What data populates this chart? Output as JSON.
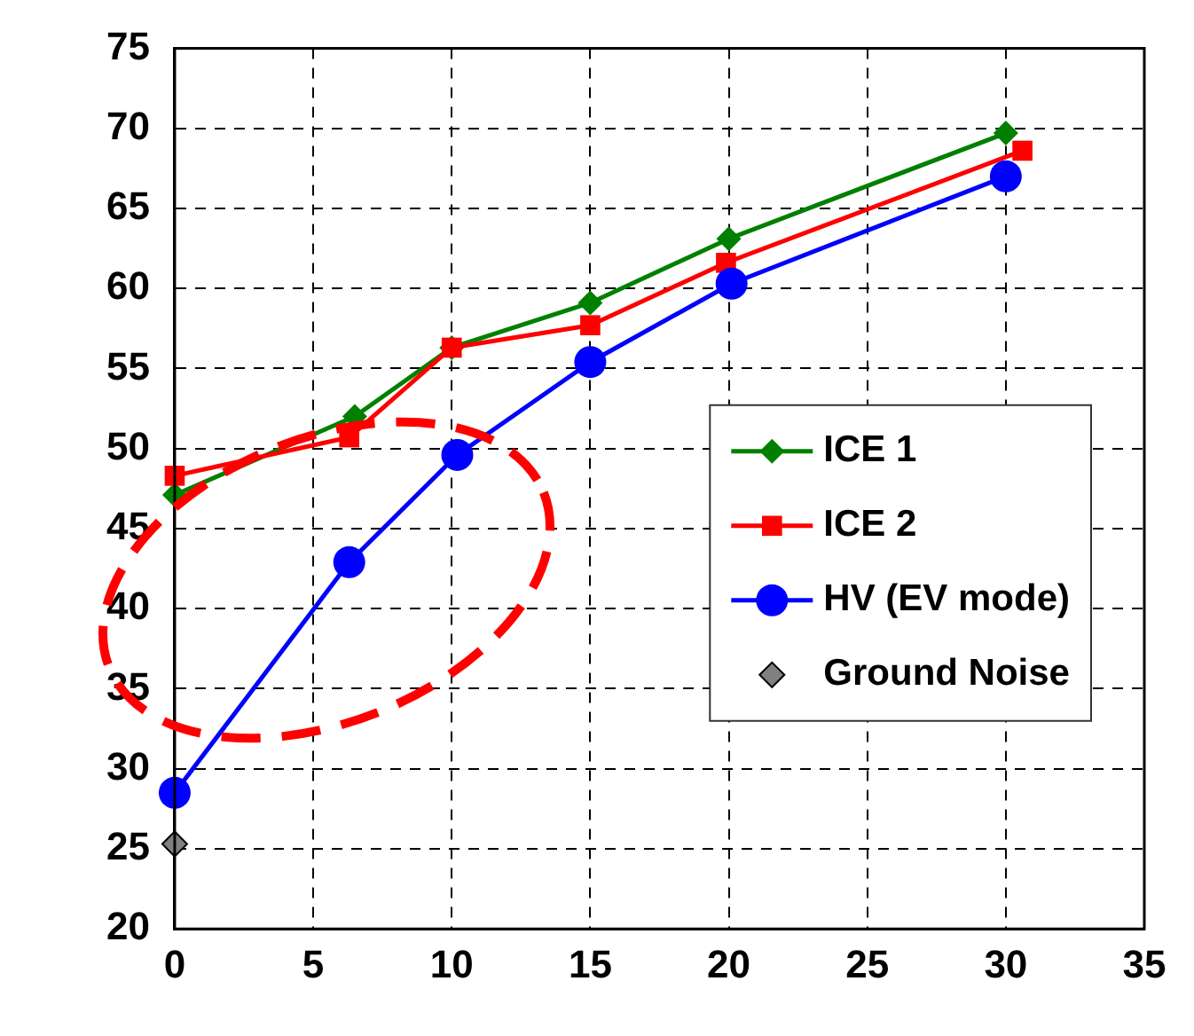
{
  "chart_data": {
    "type": "line",
    "x": [
      0,
      6.5,
      10,
      15,
      20,
      30
    ],
    "series": [
      {
        "name": "ICE 1",
        "color": "#008000",
        "marker": "diamond",
        "values": [
          47.1,
          52.0,
          56.3,
          59.1,
          63.1,
          69.7
        ]
      },
      {
        "name": "ICE 2",
        "color": "#ff0000",
        "marker": "square",
        "x": [
          0,
          6.3,
          10,
          15,
          19.9,
          30.6
        ],
        "values": [
          48.3,
          50.7,
          56.3,
          57.7,
          61.6,
          68.6
        ]
      },
      {
        "name": "HV (EV mode)",
        "color": "#0000ff",
        "marker": "circle",
        "x": [
          0,
          6.3,
          10.2,
          15,
          20.1,
          30
        ],
        "values": [
          28.5,
          42.9,
          49.6,
          55.4,
          60.3,
          67.0
        ]
      },
      {
        "name": "Ground Noise",
        "type": "scatter",
        "color": "#808080",
        "marker": "diamond",
        "x": [
          0
        ],
        "values": [
          25.3
        ]
      }
    ],
    "xlim": [
      0,
      35
    ],
    "xticks": [
      0,
      5,
      10,
      15,
      20,
      25,
      30,
      35
    ],
    "ylim": [
      20,
      75
    ],
    "yticks": [
      20,
      25,
      30,
      35,
      40,
      45,
      50,
      55,
      60,
      65,
      70,
      75
    ],
    "grid": true,
    "legend": "right"
  }
}
